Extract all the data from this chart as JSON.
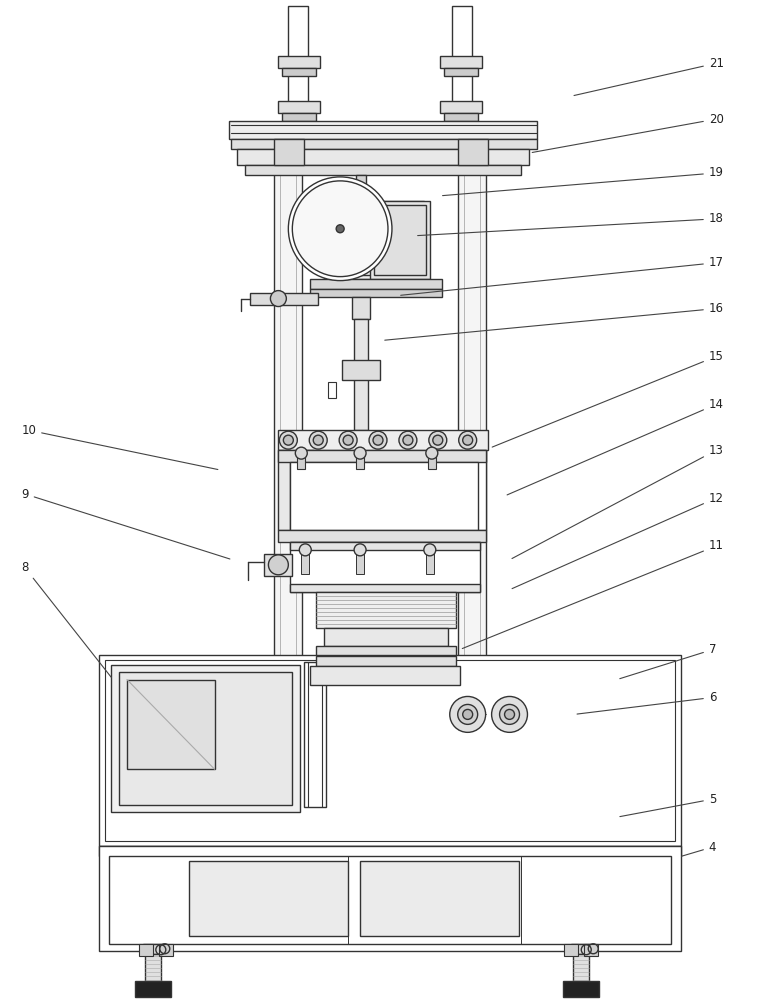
{
  "bg": "#ffffff",
  "lc": "#333333",
  "lw": 1.0,
  "fw": 7.64,
  "fh": 10.0,
  "right_labels": [
    [
      "21",
      710,
      62,
      572,
      95
    ],
    [
      "20",
      710,
      118,
      530,
      152
    ],
    [
      "19",
      710,
      172,
      440,
      195
    ],
    [
      "18",
      710,
      218,
      415,
      235
    ],
    [
      "17",
      710,
      262,
      398,
      295
    ],
    [
      "16",
      710,
      308,
      382,
      340
    ],
    [
      "15",
      710,
      356,
      490,
      448
    ],
    [
      "14",
      710,
      404,
      505,
      496
    ],
    [
      "13",
      710,
      450,
      510,
      560
    ],
    [
      "12",
      710,
      498,
      510,
      590
    ],
    [
      "11",
      710,
      546,
      460,
      650
    ],
    [
      "7",
      710,
      650,
      618,
      680
    ],
    [
      "6",
      710,
      698,
      575,
      715
    ],
    [
      "5",
      710,
      800,
      618,
      818
    ],
    [
      "4",
      710,
      848,
      680,
      858
    ]
  ],
  "left_labels": [
    [
      "10",
      20,
      430,
      220,
      470
    ],
    [
      "9",
      20,
      494,
      232,
      560
    ],
    [
      "8",
      20,
      568,
      112,
      680
    ]
  ]
}
